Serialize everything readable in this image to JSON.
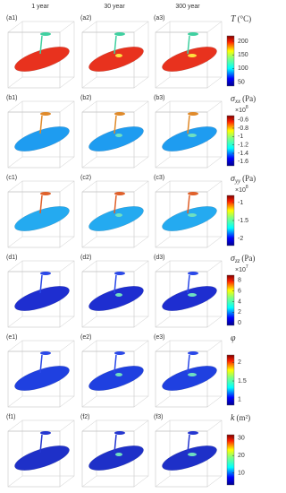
{
  "column_headers": [
    "1 year",
    "30 year",
    "300 year"
  ],
  "rows": [
    {
      "panel_labels": [
        "(a1)",
        "(a2)",
        "(a3)"
      ],
      "colorbar": {
        "symbol": "T",
        "unit": "(°C)",
        "lim": [
          35,
          220
        ],
        "ticks": [
          200,
          150,
          100,
          50
        ]
      }
    },
    {
      "panel_labels": [
        "(b1)",
        "(b2)",
        "(b3)"
      ],
      "colorbar": {
        "symbol": "σ",
        "subscript": "xx",
        "unit": "(Pa)",
        "multiplier": "×10",
        "exponent": "8",
        "lim": [
          -1.7,
          -0.5
        ],
        "ticks": [
          -0.6,
          -0.8,
          -1,
          -1.2,
          -1.4,
          -1.6
        ]
      }
    },
    {
      "panel_labels": [
        "(c1)",
        "(c2)",
        "(c3)"
      ],
      "colorbar": {
        "symbol": "σ",
        "subscript": "yy",
        "unit": "(Pa)",
        "multiplier": "×10",
        "exponent": "8",
        "lim": [
          -2.2,
          -0.8
        ],
        "ticks": [
          -1,
          -1.5,
          -2
        ]
      }
    },
    {
      "panel_labels": [
        "(d1)",
        "(d2)",
        "(d3)"
      ],
      "colorbar": {
        "symbol": "σ",
        "subscript": "zz",
        "unit": "(Pa)",
        "multiplier": "×10",
        "exponent": "7",
        "lim": [
          -0.5,
          9
        ],
        "ticks": [
          8,
          6,
          4,
          2,
          0
        ]
      }
    },
    {
      "panel_labels": [
        "(e1)",
        "(e2)",
        "(e3)"
      ],
      "colorbar": {
        "symbol": "φ",
        "lim": [
          0.85,
          2.2
        ],
        "ticks": [
          2,
          1.5,
          1
        ]
      }
    },
    {
      "panel_labels": [
        "(f1)",
        "(f2)",
        "(f3)"
      ],
      "colorbar": {
        "symbol": "k",
        "unit": "(m²)",
        "lim": [
          3,
          32
        ],
        "ticks": [
          30,
          20,
          10
        ]
      }
    }
  ]
}
